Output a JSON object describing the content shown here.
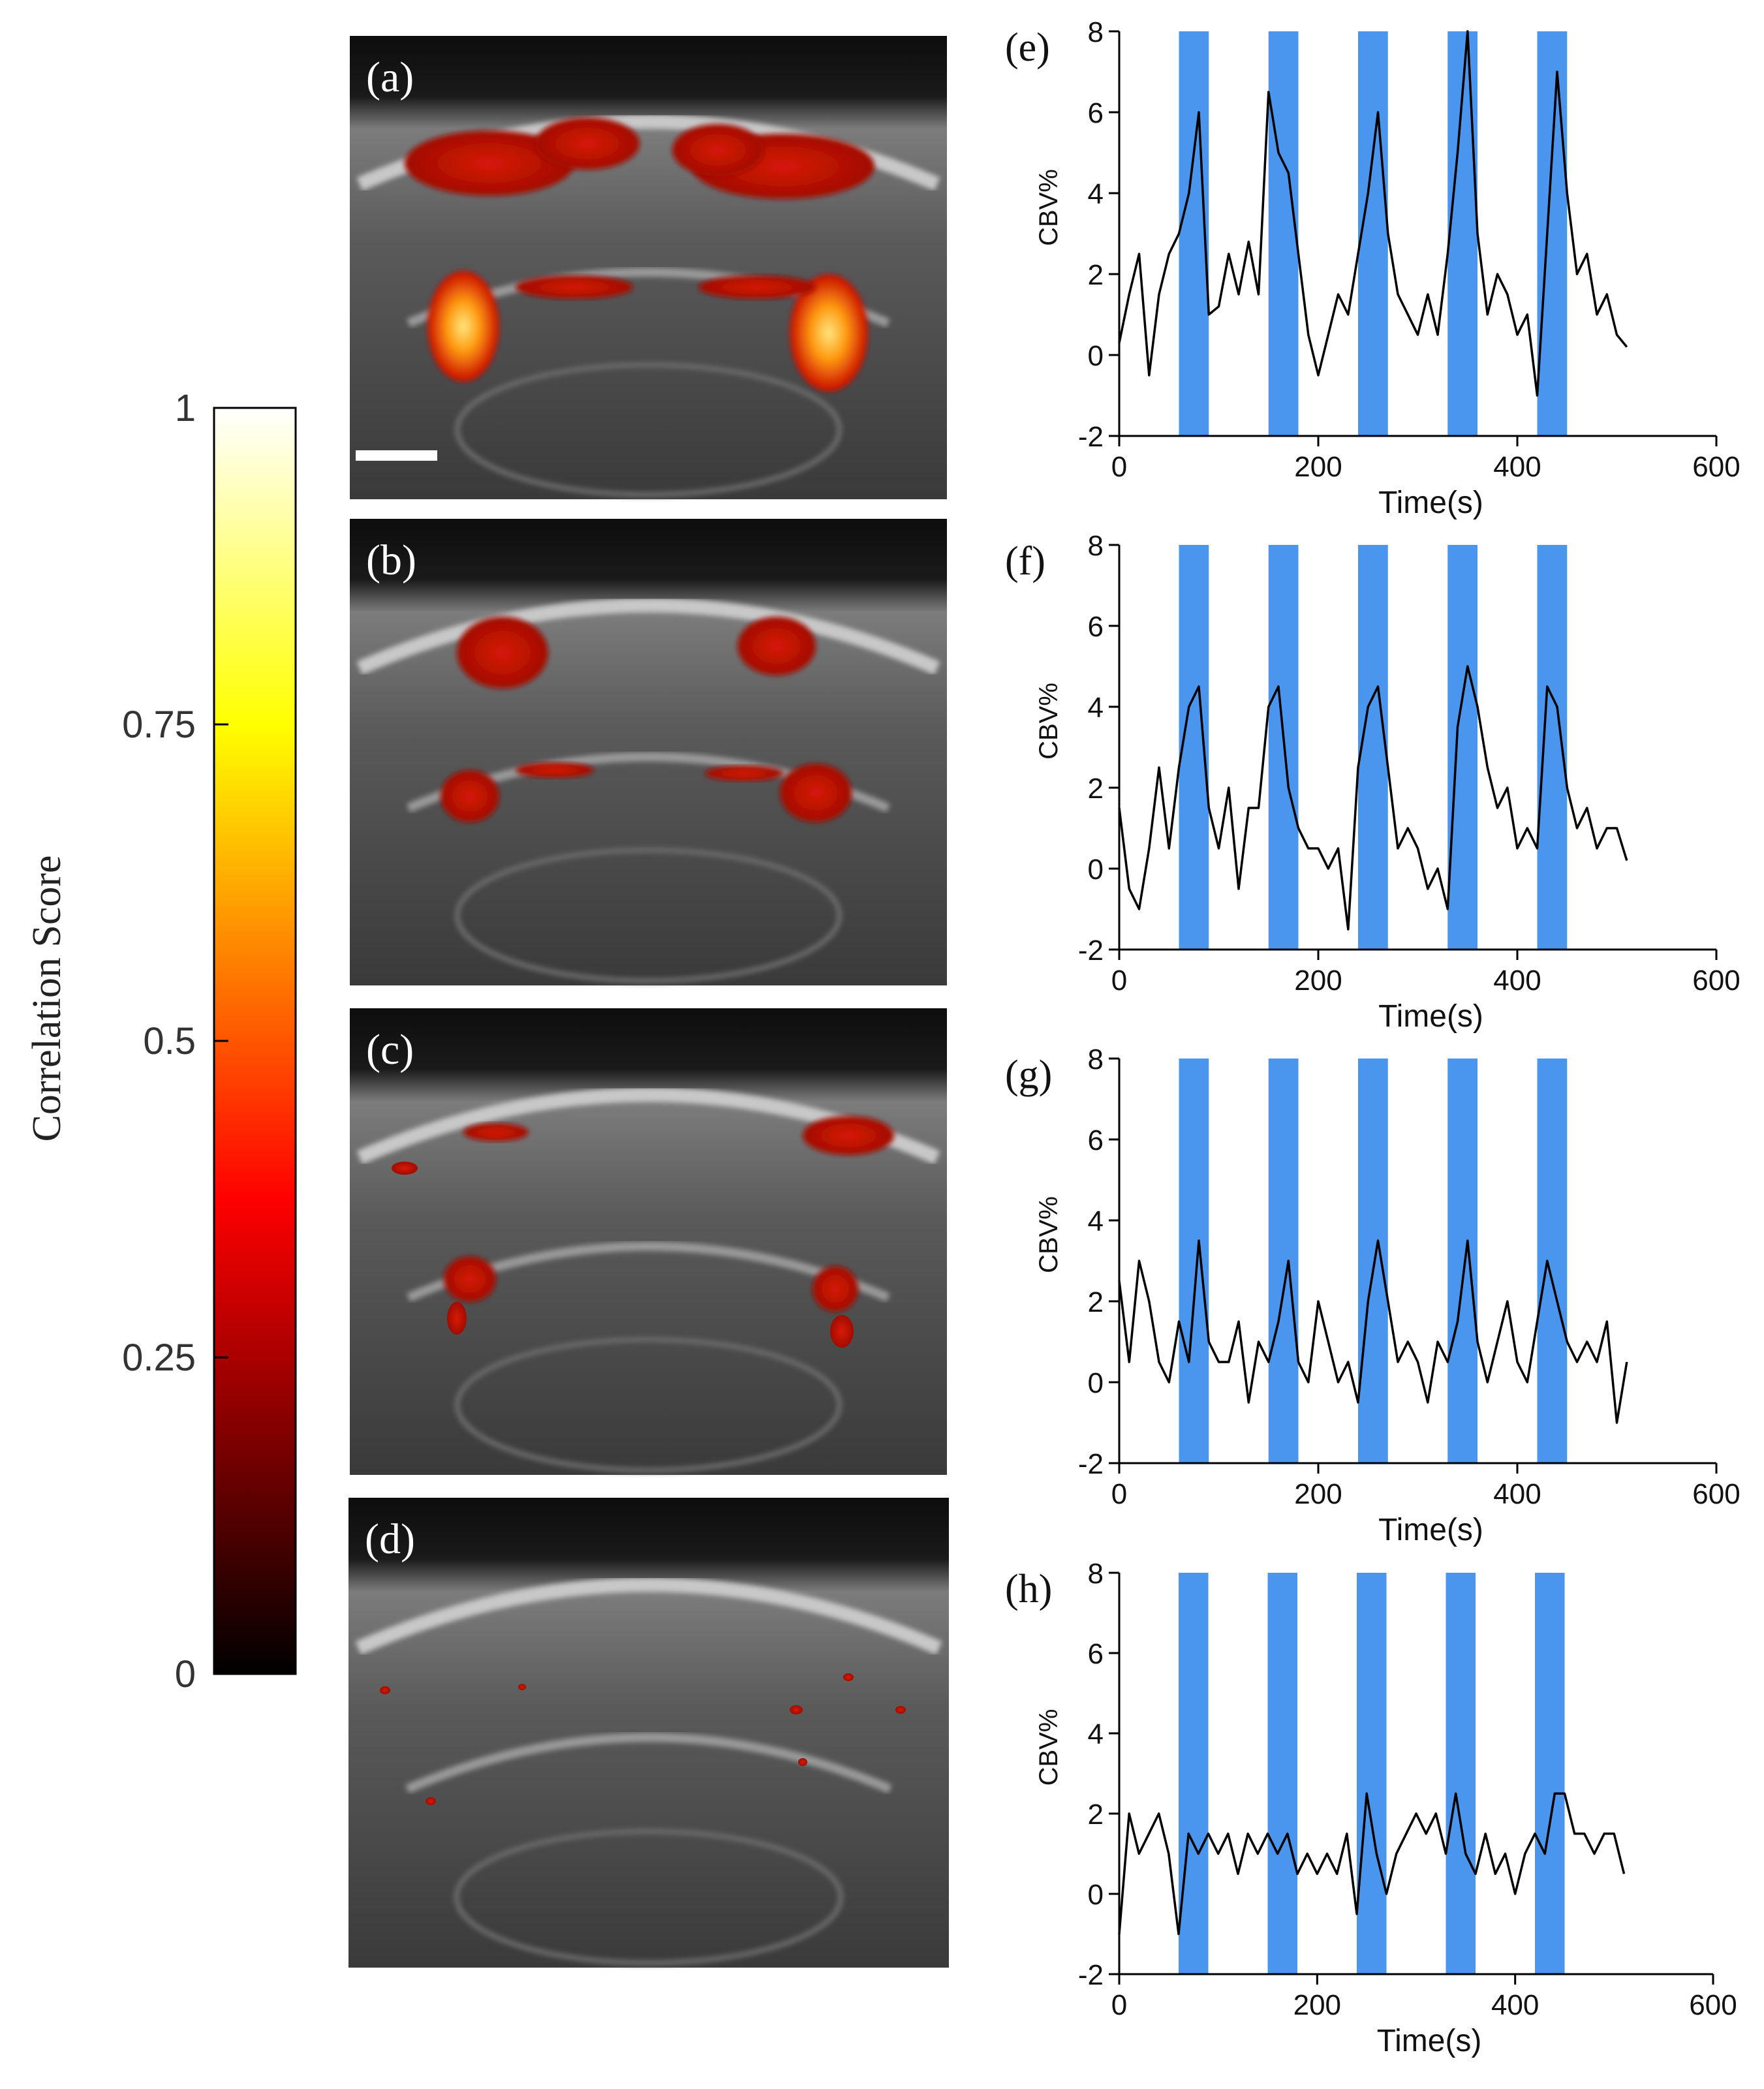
{
  "colorbar": {
    "label": "Correlation Score",
    "ticks": [
      "1",
      "0.75",
      "0.5",
      "0.25",
      "0"
    ],
    "tick_values": [
      1,
      0.75,
      0.5,
      0.25,
      0
    ],
    "range": [
      0,
      1
    ],
    "colormap": "hot"
  },
  "panels": [
    {
      "id": "a",
      "label": "(a)"
    },
    {
      "id": "b",
      "label": "(b)"
    },
    {
      "id": "c",
      "label": "(c)"
    },
    {
      "id": "d",
      "label": "(d)"
    }
  ],
  "chart_data": [
    {
      "type": "line",
      "panel": "(e)",
      "xlabel": "Time(s)",
      "ylabel": "CBV%",
      "xlim": [
        0,
        600
      ],
      "ylim": [
        -2,
        8
      ],
      "xticks": [
        "0",
        "200",
        "400",
        "600"
      ],
      "yticks": [
        "-2",
        "0",
        "2",
        "4",
        "6",
        "8"
      ],
      "stimulus_blocks": [
        [
          60,
          90
        ],
        [
          150,
          180
        ],
        [
          240,
          270
        ],
        [
          330,
          360
        ],
        [
          420,
          450
        ]
      ],
      "series": [
        {
          "x": [
            0,
            10,
            20,
            30,
            40,
            50,
            60,
            70,
            80,
            90,
            100,
            110,
            120,
            130,
            140,
            150,
            160,
            170,
            180,
            190,
            200,
            210,
            220,
            230,
            240,
            250,
            260,
            270,
            280,
            290,
            300,
            310,
            320,
            330,
            340,
            350,
            360,
            370,
            380,
            390,
            400,
            410,
            420,
            430,
            440,
            450,
            460,
            470,
            480,
            490,
            500,
            510
          ],
          "y": [
            0.3,
            1.5,
            2.5,
            -0.5,
            1.5,
            2.5,
            3.0,
            4.0,
            6.0,
            1.0,
            1.2,
            2.5,
            1.5,
            2.8,
            1.5,
            6.5,
            5.0,
            4.5,
            2.5,
            0.5,
            -0.5,
            0.5,
            1.5,
            1.0,
            2.5,
            4.0,
            6.0,
            3.0,
            1.5,
            1.0,
            0.5,
            1.5,
            0.5,
            2.5,
            5.0,
            8.0,
            3.0,
            1.0,
            2.0,
            1.5,
            0.5,
            1.0,
            -1.0,
            3.0,
            7.0,
            4.0,
            2.0,
            2.5,
            1.0,
            1.5,
            0.5,
            0.2
          ]
        }
      ]
    },
    {
      "type": "line",
      "panel": "(f)",
      "xlabel": "Time(s)",
      "ylabel": "CBV%",
      "xlim": [
        0,
        600
      ],
      "ylim": [
        -2,
        8
      ],
      "xticks": [
        "0",
        "200",
        "400",
        "600"
      ],
      "yticks": [
        "-2",
        "0",
        "2",
        "4",
        "6",
        "8"
      ],
      "stimulus_blocks": [
        [
          60,
          90
        ],
        [
          150,
          180
        ],
        [
          240,
          270
        ],
        [
          330,
          360
        ],
        [
          420,
          450
        ]
      ],
      "series": [
        {
          "x": [
            0,
            10,
            20,
            30,
            40,
            50,
            60,
            70,
            80,
            90,
            100,
            110,
            120,
            130,
            140,
            150,
            160,
            170,
            180,
            190,
            200,
            210,
            220,
            230,
            240,
            250,
            260,
            270,
            280,
            290,
            300,
            310,
            320,
            330,
            340,
            350,
            360,
            370,
            380,
            390,
            400,
            410,
            420,
            430,
            440,
            450,
            460,
            470,
            480,
            490,
            500,
            510
          ],
          "y": [
            1.5,
            -0.5,
            -1.0,
            0.5,
            2.5,
            0.5,
            2.5,
            4.0,
            4.5,
            1.5,
            0.5,
            2.0,
            -0.5,
            1.5,
            1.5,
            4.0,
            4.5,
            2.0,
            1.0,
            0.5,
            0.5,
            0.0,
            0.5,
            -1.5,
            2.5,
            4.0,
            4.5,
            2.5,
            0.5,
            1.0,
            0.5,
            -0.5,
            0.0,
            -1.0,
            3.5,
            5.0,
            4.0,
            2.5,
            1.5,
            2.0,
            0.5,
            1.0,
            0.5,
            4.5,
            4.0,
            2.0,
            1.0,
            1.5,
            0.5,
            1.0,
            1.0,
            0.2
          ]
        }
      ]
    },
    {
      "type": "line",
      "panel": "(g)",
      "xlabel": "Time(s)",
      "ylabel": "CBV%",
      "xlim": [
        0,
        600
      ],
      "ylim": [
        -2,
        8
      ],
      "xticks": [
        "0",
        "200",
        "400",
        "600"
      ],
      "yticks": [
        "-2",
        "0",
        "2",
        "4",
        "6",
        "8"
      ],
      "stimulus_blocks": [
        [
          60,
          90
        ],
        [
          150,
          180
        ],
        [
          240,
          270
        ],
        [
          330,
          360
        ],
        [
          420,
          450
        ]
      ],
      "series": [
        {
          "x": [
            0,
            10,
            20,
            30,
            40,
            50,
            60,
            70,
            80,
            90,
            100,
            110,
            120,
            130,
            140,
            150,
            160,
            170,
            180,
            190,
            200,
            210,
            220,
            230,
            240,
            250,
            260,
            270,
            280,
            290,
            300,
            310,
            320,
            330,
            340,
            350,
            360,
            370,
            380,
            390,
            400,
            410,
            420,
            430,
            440,
            450,
            460,
            470,
            480,
            490,
            500,
            510
          ],
          "y": [
            2.5,
            0.5,
            3.0,
            2.0,
            0.5,
            0.0,
            1.5,
            0.5,
            3.5,
            1.0,
            0.5,
            0.5,
            1.5,
            -0.5,
            1.0,
            0.5,
            1.5,
            3.0,
            0.5,
            0.0,
            2.0,
            1.0,
            0.0,
            0.5,
            -0.5,
            2.0,
            3.5,
            2.0,
            0.5,
            1.0,
            0.5,
            -0.5,
            1.0,
            0.5,
            1.5,
            3.5,
            1.0,
            0.0,
            1.0,
            2.0,
            0.5,
            0.0,
            1.5,
            3.0,
            2.0,
            1.0,
            0.5,
            1.0,
            0.5,
            1.5,
            -1.0,
            0.5
          ]
        }
      ]
    },
    {
      "type": "line",
      "panel": "(h)",
      "xlabel": "Time(s)",
      "ylabel": "CBV%",
      "xlim": [
        0,
        600
      ],
      "ylim": [
        -2,
        8
      ],
      "xticks": [
        "0",
        "200",
        "400",
        "600"
      ],
      "yticks": [
        "-2",
        "0",
        "2",
        "4",
        "6",
        "8"
      ],
      "stimulus_blocks": [
        [
          60,
          90
        ],
        [
          150,
          180
        ],
        [
          240,
          270
        ],
        [
          330,
          360
        ],
        [
          420,
          450
        ]
      ],
      "series": [
        {
          "x": [
            0,
            10,
            20,
            30,
            40,
            50,
            60,
            70,
            80,
            90,
            100,
            110,
            120,
            130,
            140,
            150,
            160,
            170,
            180,
            190,
            200,
            210,
            220,
            230,
            240,
            250,
            260,
            270,
            280,
            290,
            300,
            310,
            320,
            330,
            340,
            350,
            360,
            370,
            380,
            390,
            400,
            410,
            420,
            430,
            440,
            450,
            460,
            470,
            480,
            490,
            500,
            510
          ],
          "y": [
            -1.0,
            2.0,
            1.0,
            1.5,
            2.0,
            1.0,
            -1.0,
            1.5,
            1.0,
            1.5,
            1.0,
            1.5,
            0.5,
            1.5,
            1.0,
            1.5,
            1.0,
            1.5,
            0.5,
            1.0,
            0.5,
            1.0,
            0.5,
            1.5,
            -0.5,
            2.5,
            1.0,
            0.0,
            1.0,
            1.5,
            2.0,
            1.5,
            2.0,
            1.0,
            2.5,
            1.0,
            0.5,
            1.5,
            0.5,
            1.0,
            0.0,
            1.0,
            1.5,
            1.0,
            2.5,
            2.5,
            1.5,
            1.5,
            1.0,
            1.5,
            1.5,
            0.5
          ]
        }
      ]
    }
  ]
}
